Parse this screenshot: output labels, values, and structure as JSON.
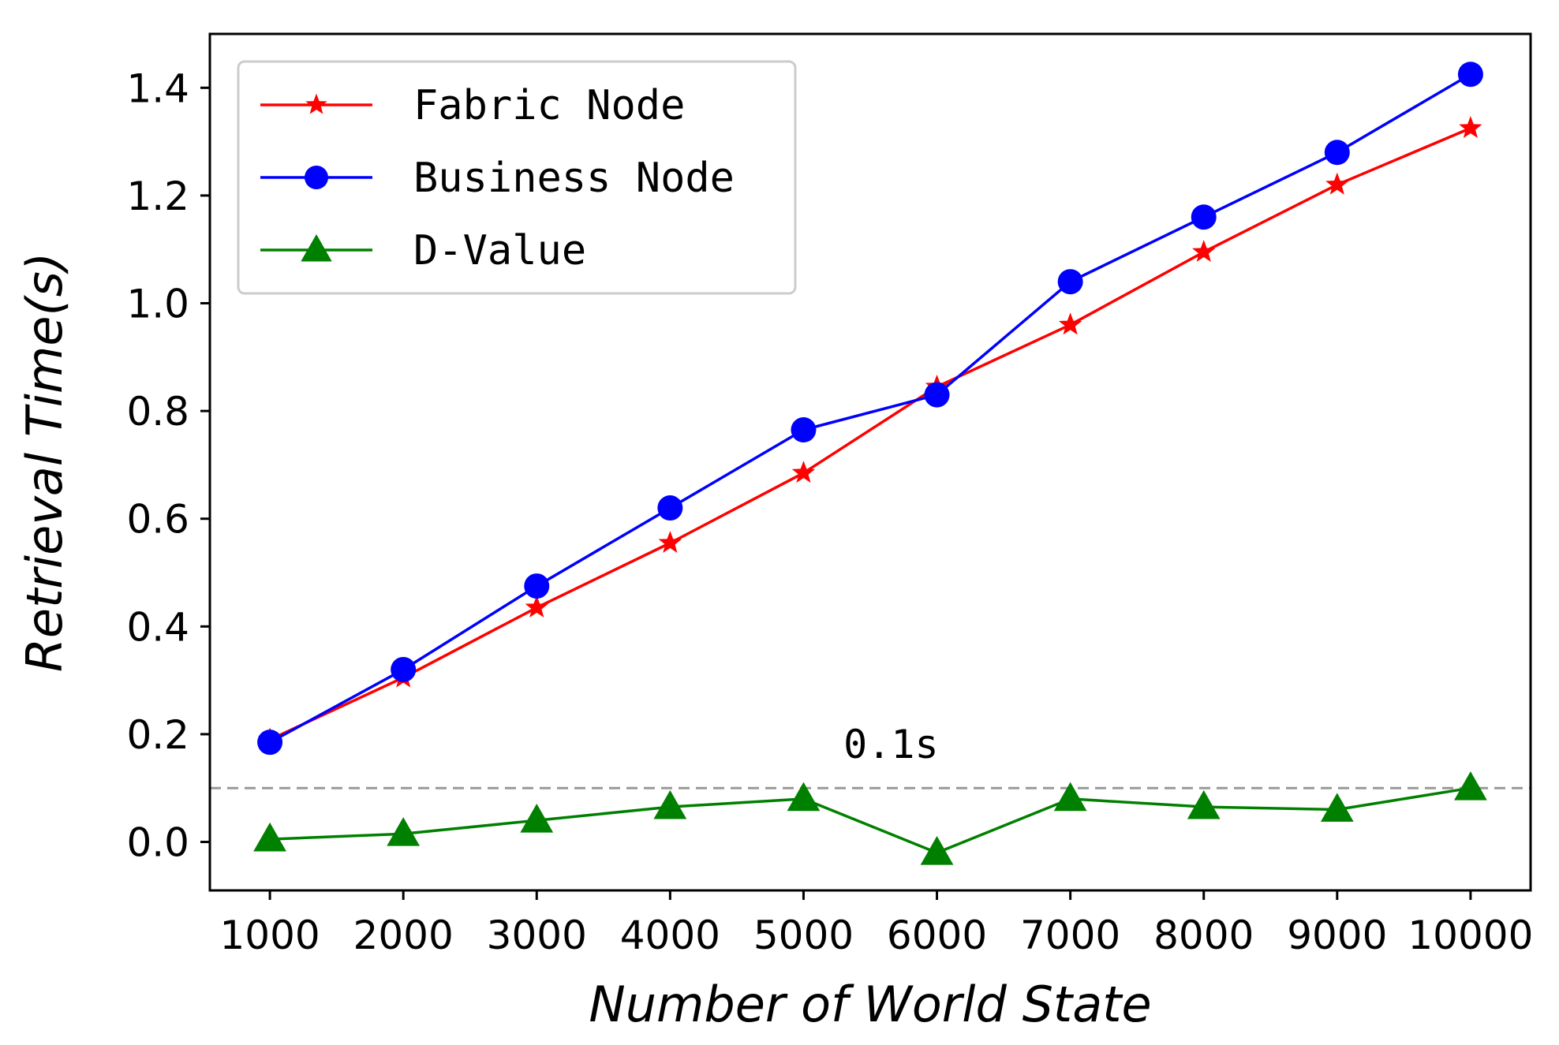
{
  "chart_data": {
    "type": "line",
    "x": [
      1000,
      2000,
      3000,
      4000,
      5000,
      6000,
      7000,
      8000,
      9000,
      10000
    ],
    "series": [
      {
        "name": "Fabric Node",
        "values": [
          0.19,
          0.305,
          0.435,
          0.555,
          0.685,
          0.845,
          0.96,
          1.095,
          1.22,
          1.325
        ],
        "color": "#ff0000",
        "marker": "star"
      },
      {
        "name": "Business Node",
        "values": [
          0.185,
          0.32,
          0.475,
          0.62,
          0.765,
          0.83,
          1.04,
          1.16,
          1.28,
          1.425
        ],
        "color": "#0000ff",
        "marker": "circle"
      },
      {
        "name": "D-Value",
        "values": [
          0.005,
          0.015,
          0.04,
          0.065,
          0.08,
          -0.02,
          0.08,
          0.065,
          0.06,
          0.1
        ],
        "color": "#008000",
        "marker": "triangle"
      }
    ],
    "reference_line": {
      "y": 0.1,
      "label": "0.1s",
      "color": "#999999",
      "style": "dashed"
    },
    "xlabel": "Number of World State",
    "ylabel": "Retrieval Time(s)",
    "xlim": [
      550,
      10450
    ],
    "ylim": [
      -0.09,
      1.5
    ],
    "x_ticks": [
      1000,
      2000,
      3000,
      4000,
      5000,
      6000,
      7000,
      8000,
      9000,
      10000
    ],
    "x_tick_labels": [
      "1000",
      "2000",
      "3000",
      "4000",
      "5000",
      "6000",
      "7000",
      "8000",
      "9000",
      "10000"
    ],
    "y_ticks": [
      0.0,
      0.2,
      0.4,
      0.6,
      0.8,
      1.0,
      1.2,
      1.4
    ],
    "y_tick_labels": [
      "0.0",
      "0.2",
      "0.4",
      "0.6",
      "0.8",
      "1.0",
      "1.2",
      "1.4"
    ],
    "legend_position": "upper-left",
    "grid": false
  }
}
